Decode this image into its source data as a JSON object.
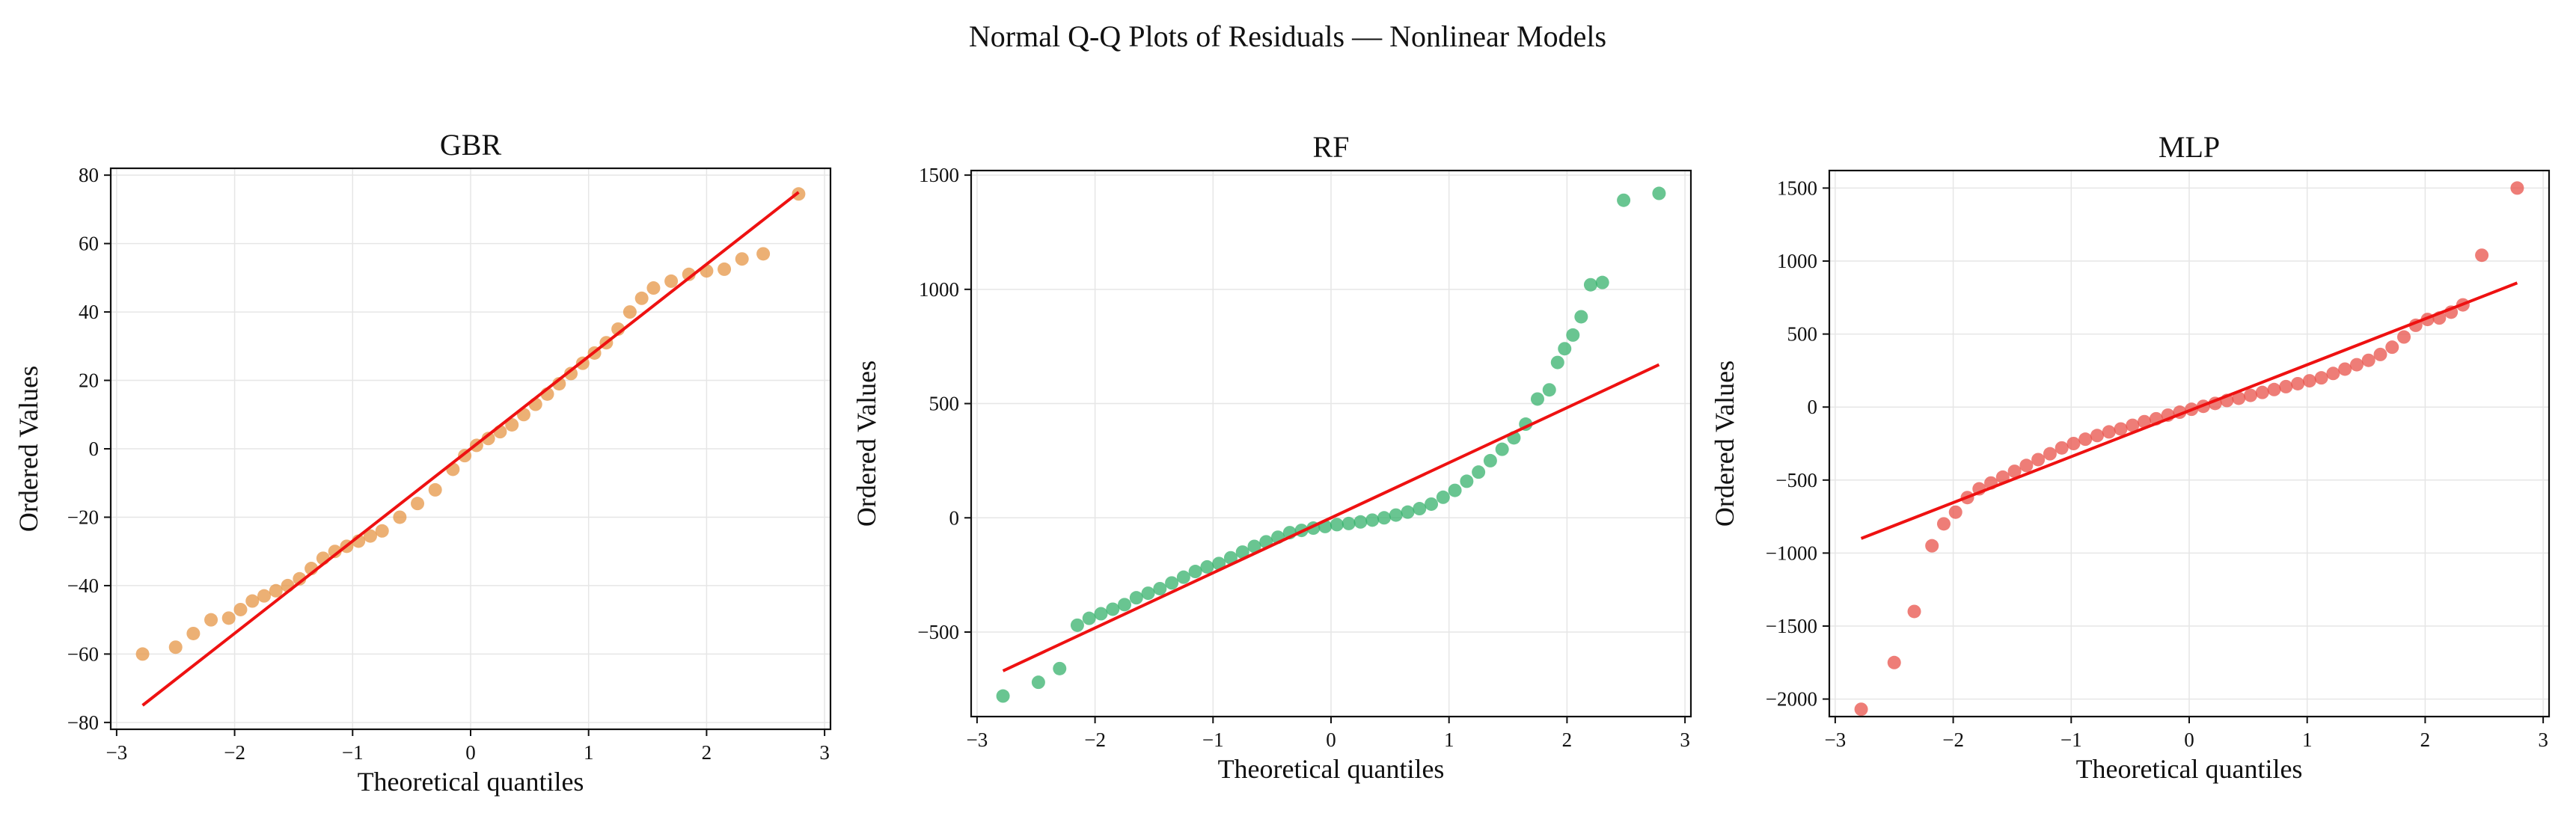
{
  "figure_title": "Normal Q-Q Plots of Residuals — Nonlinear Models",
  "colors": {
    "line": "#ee1111"
  },
  "chart_data": [
    {
      "type": "scatter",
      "title": "GBR",
      "xlabel": "Theoretical quantiles",
      "ylabel": "Ordered Values",
      "xlim": [
        -3.05,
        3.05
      ],
      "ylim": [
        -82,
        82
      ],
      "xticks": [
        -3,
        -2,
        -1,
        0,
        1,
        2,
        3
      ],
      "yticks": [
        -80,
        -60,
        -40,
        -20,
        0,
        20,
        40,
        60,
        80
      ],
      "grid": true,
      "point_color": "#e69545",
      "points": [
        [
          -2.78,
          -60
        ],
        [
          -2.5,
          -58
        ],
        [
          -2.35,
          -54
        ],
        [
          -2.2,
          -50
        ],
        [
          -2.05,
          -49.5
        ],
        [
          -1.95,
          -47
        ],
        [
          -1.85,
          -44.5
        ],
        [
          -1.75,
          -43
        ],
        [
          -1.65,
          -41.5
        ],
        [
          -1.55,
          -40
        ],
        [
          -1.45,
          -38
        ],
        [
          -1.35,
          -35
        ],
        [
          -1.25,
          -32
        ],
        [
          -1.15,
          -30
        ],
        [
          -1.05,
          -28.5
        ],
        [
          -0.95,
          -27
        ],
        [
          -0.85,
          -25.5
        ],
        [
          -0.75,
          -24
        ],
        [
          -0.6,
          -20
        ],
        [
          -0.45,
          -16
        ],
        [
          -0.3,
          -12
        ],
        [
          -0.15,
          -6
        ],
        [
          -0.05,
          -2
        ],
        [
          0.05,
          1
        ],
        [
          0.15,
          3
        ],
        [
          0.25,
          5
        ],
        [
          0.35,
          7
        ],
        [
          0.45,
          10
        ],
        [
          0.55,
          13
        ],
        [
          0.65,
          16
        ],
        [
          0.75,
          19
        ],
        [
          0.85,
          22
        ],
        [
          0.95,
          25
        ],
        [
          1.05,
          28
        ],
        [
          1.15,
          31
        ],
        [
          1.25,
          35
        ],
        [
          1.35,
          40
        ],
        [
          1.45,
          44
        ],
        [
          1.55,
          47
        ],
        [
          1.7,
          49
        ],
        [
          1.85,
          51
        ],
        [
          2.0,
          52
        ],
        [
          2.15,
          52.5
        ],
        [
          2.3,
          55.5
        ],
        [
          2.48,
          57
        ],
        [
          2.78,
          74.5
        ]
      ],
      "fit_line": {
        "x": [
          -2.78,
          2.78
        ],
        "y": [
          -75,
          75
        ]
      }
    },
    {
      "type": "scatter",
      "title": "RF",
      "xlabel": "Theoretical quantiles",
      "ylabel": "Ordered Values",
      "xlim": [
        -3.05,
        3.05
      ],
      "ylim": [
        -870,
        1520
      ],
      "xticks": [
        -3,
        -2,
        -1,
        0,
        1,
        2,
        3
      ],
      "yticks": [
        -500,
        0,
        500,
        1000,
        1500
      ],
      "grid": true,
      "point_color": "#37b26c",
      "points": [
        [
          -2.78,
          -780
        ],
        [
          -2.48,
          -720
        ],
        [
          -2.3,
          -660
        ],
        [
          -2.15,
          -470
        ],
        [
          -2.05,
          -440
        ],
        [
          -1.95,
          -420
        ],
        [
          -1.85,
          -400
        ],
        [
          -1.75,
          -380
        ],
        [
          -1.65,
          -350
        ],
        [
          -1.55,
          -330
        ],
        [
          -1.45,
          -310
        ],
        [
          -1.35,
          -285
        ],
        [
          -1.25,
          -260
        ],
        [
          -1.15,
          -235
        ],
        [
          -1.05,
          -215
        ],
        [
          -0.95,
          -200
        ],
        [
          -0.85,
          -175
        ],
        [
          -0.75,
          -150
        ],
        [
          -0.65,
          -125
        ],
        [
          -0.55,
          -105
        ],
        [
          -0.45,
          -85
        ],
        [
          -0.35,
          -65
        ],
        [
          -0.25,
          -55
        ],
        [
          -0.15,
          -45
        ],
        [
          -0.05,
          -38
        ],
        [
          0.05,
          -30
        ],
        [
          0.15,
          -25
        ],
        [
          0.25,
          -18
        ],
        [
          0.35,
          -10
        ],
        [
          0.45,
          0
        ],
        [
          0.55,
          12
        ],
        [
          0.65,
          25
        ],
        [
          0.75,
          40
        ],
        [
          0.85,
          60
        ],
        [
          0.95,
          90
        ],
        [
          1.05,
          120
        ],
        [
          1.15,
          160
        ],
        [
          1.25,
          200
        ],
        [
          1.35,
          250
        ],
        [
          1.45,
          300
        ],
        [
          1.55,
          350
        ],
        [
          1.65,
          410
        ],
        [
          1.75,
          520
        ],
        [
          1.85,
          560
        ],
        [
          1.92,
          680
        ],
        [
          1.98,
          740
        ],
        [
          2.05,
          800
        ],
        [
          2.12,
          880
        ],
        [
          2.2,
          1020
        ],
        [
          2.3,
          1030
        ],
        [
          2.48,
          1390
        ],
        [
          2.78,
          1420
        ]
      ],
      "fit_line": {
        "x": [
          -2.78,
          2.78
        ],
        "y": [
          -670,
          670
        ]
      }
    },
    {
      "type": "scatter",
      "title": "MLP",
      "xlabel": "Theoretical quantiles",
      "ylabel": "Ordered Values",
      "xlim": [
        -3.05,
        3.05
      ],
      "ylim": [
        -2120,
        1620
      ],
      "xticks": [
        -3,
        -2,
        -1,
        0,
        1,
        2,
        3
      ],
      "yticks": [
        -2000,
        -1500,
        -1000,
        -500,
        0,
        500,
        1000,
        1500
      ],
      "grid": true,
      "point_color": "#e8524a",
      "points": [
        [
          -2.78,
          -2070
        ],
        [
          -2.5,
          -1750
        ],
        [
          -2.33,
          -1400
        ],
        [
          -2.18,
          -950
        ],
        [
          -2.08,
          -800
        ],
        [
          -1.98,
          -720
        ],
        [
          -1.88,
          -620
        ],
        [
          -1.78,
          -560
        ],
        [
          -1.68,
          -520
        ],
        [
          -1.58,
          -480
        ],
        [
          -1.48,
          -440
        ],
        [
          -1.38,
          -400
        ],
        [
          -1.28,
          -360
        ],
        [
          -1.18,
          -320
        ],
        [
          -1.08,
          -280
        ],
        [
          -0.98,
          -250
        ],
        [
          -0.88,
          -220
        ],
        [
          -0.78,
          -195
        ],
        [
          -0.68,
          -170
        ],
        [
          -0.58,
          -150
        ],
        [
          -0.48,
          -125
        ],
        [
          -0.38,
          -100
        ],
        [
          -0.28,
          -80
        ],
        [
          -0.18,
          -55
        ],
        [
          -0.08,
          -35
        ],
        [
          0.02,
          -15
        ],
        [
          0.12,
          5
        ],
        [
          0.22,
          25
        ],
        [
          0.32,
          45
        ],
        [
          0.42,
          60
        ],
        [
          0.52,
          80
        ],
        [
          0.62,
          100
        ],
        [
          0.72,
          120
        ],
        [
          0.82,
          140
        ],
        [
          0.92,
          160
        ],
        [
          1.02,
          180
        ],
        [
          1.12,
          200
        ],
        [
          1.22,
          230
        ],
        [
          1.32,
          260
        ],
        [
          1.42,
          290
        ],
        [
          1.52,
          320
        ],
        [
          1.62,
          360
        ],
        [
          1.72,
          410
        ],
        [
          1.82,
          480
        ],
        [
          1.92,
          560
        ],
        [
          2.02,
          600
        ],
        [
          2.12,
          610
        ],
        [
          2.22,
          650
        ],
        [
          2.32,
          700
        ],
        [
          2.48,
          1040
        ],
        [
          2.78,
          1500
        ]
      ],
      "fit_line": {
        "x": [
          -2.78,
          2.78
        ],
        "y": [
          -900,
          850
        ]
      }
    }
  ]
}
